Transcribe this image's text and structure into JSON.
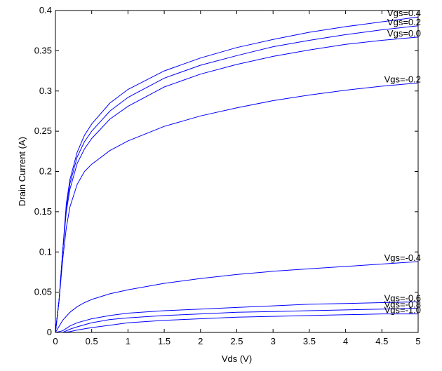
{
  "chart_data": {
    "type": "line",
    "title": "",
    "xlabel": "Vds (V)",
    "ylabel": "Drain Current (A)",
    "xlim": [
      0,
      5
    ],
    "ylim": [
      0,
      0.4
    ],
    "xticks": [
      0,
      0.5,
      1,
      1.5,
      2,
      2.5,
      3,
      3.5,
      4,
      4.5,
      5
    ],
    "xtick_labels": [
      "0",
      "0.5",
      "1",
      "1.5",
      "2",
      "2.5",
      "3",
      "3.5",
      "4",
      "4.5",
      "5"
    ],
    "yticks": [
      0,
      0.05,
      0.1,
      0.15,
      0.2,
      0.25,
      0.3,
      0.35,
      0.4
    ],
    "ytick_labels": [
      "0",
      "0.05",
      "0.1",
      "0.15",
      "0.2",
      "0.25",
      "0.3",
      "0.35",
      "0.4"
    ],
    "grid": false,
    "line_color": "#0000ff",
    "series": [
      {
        "name": "Vgs=0.4",
        "x": [
          0,
          0.05,
          0.1,
          0.15,
          0.2,
          0.3,
          0.4,
          0.5,
          0.75,
          1,
          1.5,
          2,
          2.5,
          3,
          3.5,
          4,
          4.5,
          5
        ],
        "values": [
          0,
          0.04,
          0.1,
          0.16,
          0.19,
          0.224,
          0.245,
          0.259,
          0.285,
          0.302,
          0.325,
          0.341,
          0.354,
          0.364,
          0.373,
          0.38,
          0.386,
          0.392
        ]
      },
      {
        "name": "Vgs=0.2",
        "x": [
          0,
          0.05,
          0.1,
          0.15,
          0.2,
          0.3,
          0.4,
          0.5,
          0.75,
          1,
          1.5,
          2,
          2.5,
          3,
          3.5,
          4,
          4.5,
          5
        ],
        "values": [
          0,
          0.04,
          0.1,
          0.155,
          0.185,
          0.218,
          0.237,
          0.25,
          0.275,
          0.292,
          0.316,
          0.332,
          0.344,
          0.355,
          0.363,
          0.37,
          0.376,
          0.381
        ]
      },
      {
        "name": "Vgs=0.0",
        "x": [
          0,
          0.05,
          0.1,
          0.15,
          0.2,
          0.3,
          0.4,
          0.5,
          0.75,
          1,
          1.5,
          2,
          2.5,
          3,
          3.5,
          4,
          4.5,
          5
        ],
        "values": [
          0,
          0.04,
          0.1,
          0.15,
          0.178,
          0.21,
          0.228,
          0.241,
          0.265,
          0.281,
          0.305,
          0.321,
          0.333,
          0.343,
          0.351,
          0.358,
          0.363,
          0.367
        ]
      },
      {
        "name": "Vgs=-0.2",
        "x": [
          0,
          0.05,
          0.1,
          0.15,
          0.2,
          0.3,
          0.4,
          0.5,
          0.75,
          1,
          1.5,
          2,
          2.5,
          3,
          3.5,
          4,
          4.5,
          5
        ],
        "values": [
          0,
          0.04,
          0.09,
          0.13,
          0.156,
          0.184,
          0.2,
          0.209,
          0.226,
          0.238,
          0.256,
          0.269,
          0.279,
          0.288,
          0.295,
          0.301,
          0.306,
          0.31
        ]
      },
      {
        "name": "Vgs=-0.4",
        "x": [
          0,
          0.1,
          0.2,
          0.3,
          0.4,
          0.5,
          0.75,
          1,
          1.5,
          2,
          2.5,
          3,
          3.5,
          4,
          4.5,
          5
        ],
        "values": [
          0,
          0.015,
          0.025,
          0.032,
          0.037,
          0.041,
          0.048,
          0.053,
          0.061,
          0.067,
          0.072,
          0.076,
          0.079,
          0.082,
          0.085,
          0.088
        ]
      },
      {
        "name": "Vgs=-0.6",
        "x": [
          0,
          0.1,
          0.2,
          0.3,
          0.5,
          0.75,
          1,
          1.5,
          2,
          2.5,
          3,
          3.5,
          4,
          4.5,
          5
        ],
        "values": [
          0,
          0.002,
          0.008,
          0.012,
          0.017,
          0.021,
          0.024,
          0.027,
          0.029,
          0.031,
          0.033,
          0.035,
          0.036,
          0.037,
          0.038
        ]
      },
      {
        "name": "Vgs=-0.8",
        "x": [
          0,
          0.1,
          0.2,
          0.3,
          0.5,
          0.75,
          1,
          1.5,
          2,
          2.5,
          3,
          3.5,
          4,
          4.5,
          5
        ],
        "values": [
          0,
          0,
          0.004,
          0.007,
          0.012,
          0.016,
          0.018,
          0.021,
          0.023,
          0.025,
          0.026,
          0.027,
          0.028,
          0.029,
          0.03
        ]
      },
      {
        "name": "Vgs=-1.0",
        "x": [
          0,
          0.1,
          0.2,
          0.3,
          0.5,
          0.75,
          1,
          1.5,
          2,
          2.5,
          3,
          3.5,
          4,
          4.5,
          5
        ],
        "values": [
          0,
          0,
          0.001,
          0.003,
          0.006,
          0.009,
          0.012,
          0.015,
          0.017,
          0.019,
          0.02,
          0.021,
          0.022,
          0.023,
          0.023
        ]
      }
    ]
  }
}
